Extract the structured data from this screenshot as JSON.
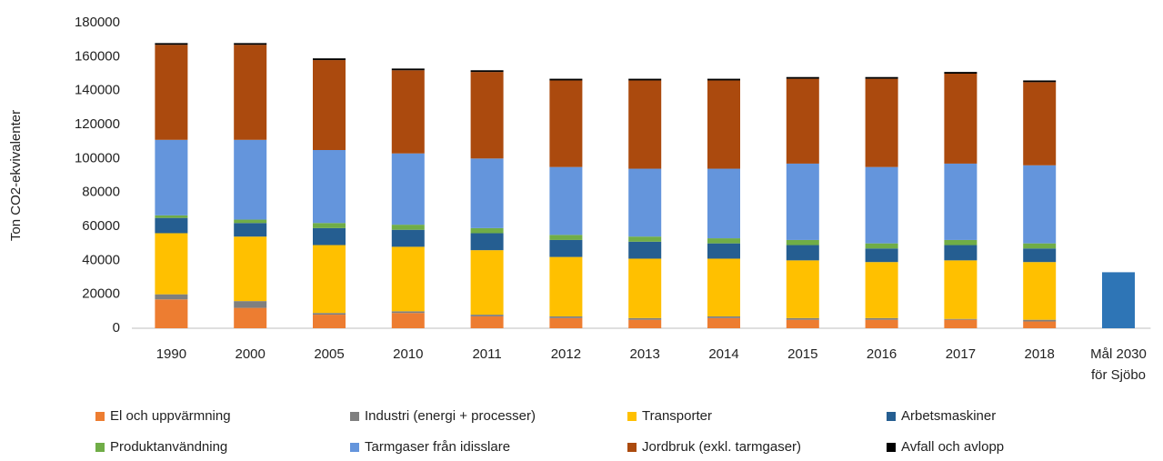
{
  "chart_data": {
    "type": "stacked_bar",
    "y_label": "Ton CO2-ekvivalenter",
    "categories": [
      "1990",
      "2000",
      "2005",
      "2010",
      "2011",
      "2012",
      "2013",
      "2014",
      "2015",
      "2016",
      "2017",
      "2018",
      "Mål 2030 för Sjöbo"
    ],
    "ylim": [
      0,
      180000
    ],
    "yticks": [
      0,
      20000,
      40000,
      60000,
      80000,
      100000,
      120000,
      140000,
      160000,
      180000
    ],
    "grid": false,
    "legend": "bottom",
    "series": [
      {
        "name": "El och uppvärmning",
        "color": "#ed7d31",
        "values": [
          17000,
          12000,
          8000,
          9000,
          7000,
          6000,
          5000,
          6000,
          5000,
          5000,
          5000,
          4000,
          null
        ]
      },
      {
        "name": "Industri (energi + processer)",
        "color": "#7f7f7f",
        "values": [
          3000,
          4000,
          1000,
          1000,
          1000,
          1000,
          1000,
          1000,
          1000,
          1000,
          500,
          1000,
          null
        ]
      },
      {
        "name": "Transporter",
        "color": "#ffc000",
        "values": [
          36000,
          38000,
          40000,
          38000,
          38000,
          35000,
          35000,
          34000,
          34000,
          33000,
          34500,
          34000,
          null
        ]
      },
      {
        "name": "Arbetsmaskiner",
        "color": "#255e91",
        "values": [
          9000,
          8000,
          10000,
          10000,
          10000,
          10000,
          10000,
          9000,
          9000,
          8000,
          9000,
          8000,
          null
        ]
      },
      {
        "name": "Produktanvändning",
        "color": "#70ad47",
        "values": [
          1500,
          2000,
          3000,
          3000,
          3000,
          3000,
          3000,
          3000,
          3000,
          3000,
          3000,
          3000,
          null
        ]
      },
      {
        "name": "Tarmgaser från idisslare",
        "color": "#6495dc",
        "values": [
          44500,
          47000,
          43000,
          42000,
          41000,
          40000,
          40000,
          41000,
          45000,
          45000,
          45000,
          46000,
          null
        ]
      },
      {
        "name": "Jordbruk (exkl. tarmgaser)",
        "color": "#ab4a0e",
        "values": [
          56000,
          56000,
          53000,
          49000,
          51000,
          51000,
          52000,
          52000,
          50000,
          52000,
          53000,
          49000,
          null
        ]
      },
      {
        "name": "Avfall och avlopp",
        "color": "#000000",
        "values": [
          1000,
          1000,
          1000,
          1000,
          1000,
          1000,
          1000,
          1000,
          1000,
          1000,
          1000,
          1000,
          null
        ]
      },
      {
        "color": "#2e75b6",
        "values": [
          null,
          null,
          null,
          null,
          null,
          null,
          null,
          null,
          null,
          null,
          null,
          null,
          33000
        ]
      }
    ]
  }
}
